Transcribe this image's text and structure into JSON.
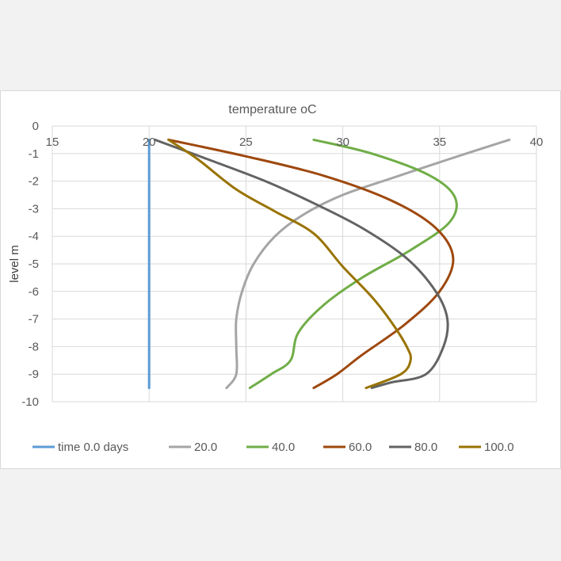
{
  "chart_data": {
    "type": "line",
    "title": "temperature oC",
    "xlabel": "",
    "ylabel": "level m",
    "xlim": [
      15,
      40
    ],
    "ylim": [
      -10,
      0
    ],
    "x_ticks": [
      "15",
      "20",
      "25",
      "30",
      "35",
      "40"
    ],
    "y_ticks": [
      "0",
      "-1",
      "-2",
      "-3",
      "-4",
      "-5",
      "-6",
      "-7",
      "-8",
      "-9",
      "-10"
    ],
    "x_axis_position": "top",
    "grid": true,
    "legend_position": "bottom",
    "series": [
      {
        "name": "time 0.0 days",
        "color": "#5b9bd5",
        "points": [
          [
            20,
            -0.5
          ],
          [
            20,
            -9.5
          ]
        ]
      },
      {
        "name": "20.0",
        "color": "#a5a5a5",
        "points": [
          [
            38.6,
            -0.5
          ],
          [
            35.5,
            -1.2
          ],
          [
            32.5,
            -1.9
          ],
          [
            30,
            -2.5
          ],
          [
            28,
            -3.2
          ],
          [
            26.5,
            -4
          ],
          [
            25.4,
            -5
          ],
          [
            24.8,
            -6
          ],
          [
            24.5,
            -7
          ],
          [
            24.5,
            -8
          ],
          [
            24.5,
            -9
          ],
          [
            24,
            -9.5
          ]
        ]
      },
      {
        "name": "40.0",
        "color": "#70ad47",
        "points": [
          [
            28.5,
            -0.5
          ],
          [
            31.5,
            -1
          ],
          [
            34.5,
            -1.8
          ],
          [
            35.8,
            -2.6
          ],
          [
            35.5,
            -3.5
          ],
          [
            33.5,
            -4.5
          ],
          [
            31,
            -5.5
          ],
          [
            29,
            -6.5
          ],
          [
            27.7,
            -7.5
          ],
          [
            27.3,
            -8.5
          ],
          [
            26.3,
            -9
          ],
          [
            25.2,
            -9.5
          ]
        ]
      },
      {
        "name": "60.0",
        "color": "#9e480e",
        "points": [
          [
            21,
            -0.5
          ],
          [
            25,
            -1.1
          ],
          [
            29,
            -1.8
          ],
          [
            32.5,
            -2.7
          ],
          [
            34.8,
            -3.7
          ],
          [
            35.7,
            -4.8
          ],
          [
            35,
            -6
          ],
          [
            33.2,
            -7.2
          ],
          [
            31,
            -8.3
          ],
          [
            29.7,
            -9
          ],
          [
            28.5,
            -9.5
          ]
        ]
      },
      {
        "name": "80.0",
        "color": "#636363",
        "points": [
          [
            20.3,
            -0.5
          ],
          [
            23,
            -1.2
          ],
          [
            26,
            -2
          ],
          [
            28.5,
            -2.8
          ],
          [
            31,
            -3.7
          ],
          [
            33.3,
            -4.8
          ],
          [
            34.8,
            -6
          ],
          [
            35.4,
            -7
          ],
          [
            35.2,
            -8
          ],
          [
            34.3,
            -9
          ],
          [
            32.5,
            -9.3
          ],
          [
            31.5,
            -9.5
          ]
        ]
      },
      {
        "name": "100.0",
        "color": "#997300",
        "points": [
          [
            21,
            -0.5
          ],
          [
            22.5,
            -1.2
          ],
          [
            24.5,
            -2.3
          ],
          [
            26.5,
            -3.1
          ],
          [
            28.5,
            -3.9
          ],
          [
            30,
            -5.1
          ],
          [
            31.5,
            -6.2
          ],
          [
            32.5,
            -7.1
          ],
          [
            33.3,
            -8
          ],
          [
            33.5,
            -8.5
          ],
          [
            33,
            -9
          ],
          [
            31.2,
            -9.5
          ]
        ]
      }
    ]
  }
}
